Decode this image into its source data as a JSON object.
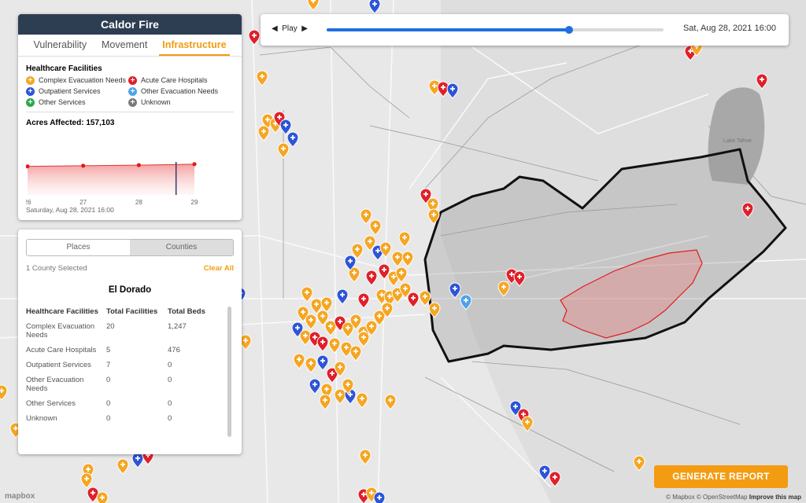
{
  "fire_panel": {
    "title": "Caldor Fire",
    "tabs": [
      "Vulnerability",
      "Movement",
      "Infrastructure"
    ],
    "active_tab": "Infrastructure",
    "healthcare_title": "Healthcare Facilities",
    "legend": [
      {
        "label": "Complex Evacuation Needs",
        "color": "#f5a623",
        "icon": "plus-icon"
      },
      {
        "label": "Acute Care Hospitals",
        "color": "#e0202a",
        "icon": "plus-icon"
      },
      {
        "label": "Outpatient Services",
        "color": "#2d55d8",
        "icon": "plus-icon"
      },
      {
        "label": "Other Evacuation Needs",
        "color": "#4fa3e8",
        "icon": "plus-icon"
      },
      {
        "label": "Other Services",
        "color": "#2ea84a",
        "icon": "plus-icon"
      },
      {
        "label": "Unknown",
        "color": "#7a7a7a",
        "icon": "plus-icon"
      }
    ],
    "acres_label": "Acres Affected: 157,103",
    "chart_date": "Saturday, Aug 28, 2021 16:00"
  },
  "chart_data": {
    "type": "area",
    "x": [
      26,
      27,
      28,
      29
    ],
    "categories": [
      "26",
      "27",
      "28",
      "29"
    ],
    "values": [
      147000,
      150500,
      153500,
      158500
    ],
    "current_x": 28.67,
    "ylim": [
      0,
      170000
    ],
    "title": "",
    "xlabel": "",
    "ylabel": ""
  },
  "table_panel": {
    "toggle": [
      "Places",
      "Counties"
    ],
    "active_toggle": "Places",
    "selected_text": "1 County Selected",
    "clear_label": "Clear All",
    "county_name": "El Dorado",
    "headers": [
      "Healthcare Facilities",
      "Total Facilities",
      "Total Beds"
    ],
    "rows": [
      [
        "Complex Evacuation Needs",
        "20",
        "1,247"
      ],
      [
        "Acute Care Hospitals",
        "5",
        "476"
      ],
      [
        "Outpatient Services",
        "7",
        "0"
      ],
      [
        "Other Evacuation Needs",
        "0",
        "0"
      ],
      [
        "Other Services",
        "0",
        "0"
      ],
      [
        "Unknown",
        "0",
        "0"
      ]
    ]
  },
  "player": {
    "play_label": "Play",
    "progress": 0.72,
    "timestamp": "Sat, Aug 28, 2021 16:00"
  },
  "report_button": "GENERATE REPORT",
  "attribution": {
    "mapbox": "© Mapbox",
    "osm": "© OpenStreetMap",
    "improve": "Improve this map",
    "logo": "mapbox"
  },
  "map": {
    "lake_label": "Lake Tahoe"
  }
}
